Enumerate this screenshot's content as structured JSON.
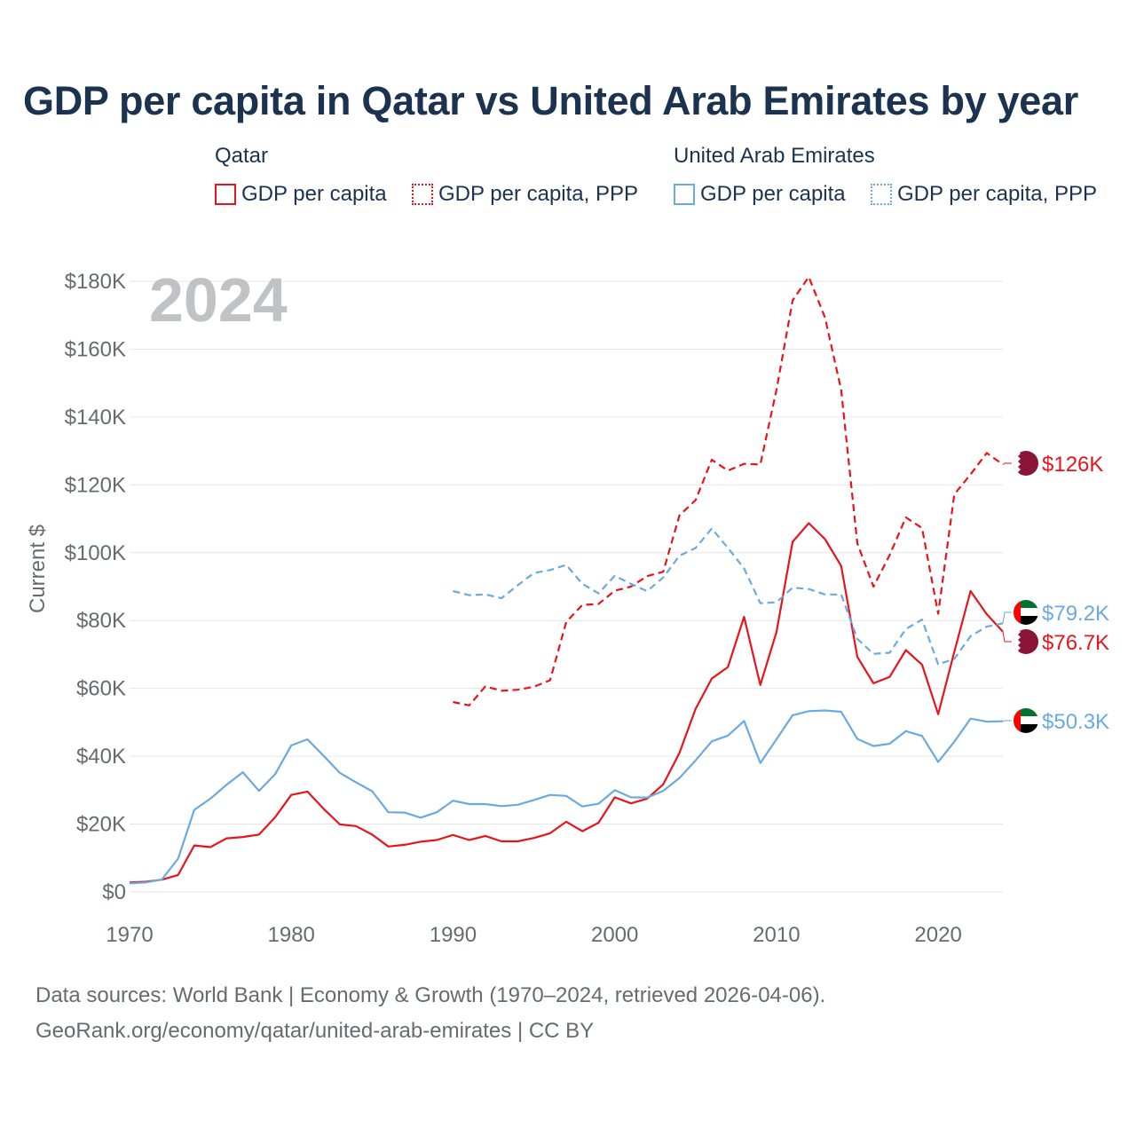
{
  "header": {
    "title": "GDP per capita in Qatar vs United Arab Emirates by year"
  },
  "legend": {
    "groups": [
      {
        "title": "Qatar",
        "items": [
          "GDP per capita",
          "GDP per capita, PPP"
        ]
      },
      {
        "title": "United Arab Emirates",
        "items": [
          "GDP per capita",
          "GDP per capita, PPP"
        ]
      }
    ]
  },
  "footer": {
    "line1": "Data sources: World Bank | Economy & Growth (1970–2024, retrieved 2026-04-06).",
    "line2": "GeoRank.org/economy/qatar/united-arab-emirates | CC BY"
  },
  "colors": {
    "qatar": "#e8141b",
    "uae": "#6aaae0",
    "grid": "#e6e6e6",
    "axis_text": "#666b70",
    "year_label": "#c0c2c6"
  },
  "chart_data": {
    "type": "line",
    "year_label": "2024",
    "ylabel": "Current $",
    "xlim": [
      1970,
      2024
    ],
    "ylim": [
      0,
      180000
    ],
    "x_ticks": [
      1970,
      1980,
      1990,
      2000,
      2010,
      2020
    ],
    "y_ticks": [
      {
        "value": 0,
        "label": "$0"
      },
      {
        "value": 20000,
        "label": "$20K"
      },
      {
        "value": 40000,
        "label": "$40K"
      },
      {
        "value": 60000,
        "label": "$60K"
      },
      {
        "value": 80000,
        "label": "$80K"
      },
      {
        "value": 100000,
        "label": "$100K"
      },
      {
        "value": 120000,
        "label": "$120K"
      },
      {
        "value": 140000,
        "label": "$140K"
      },
      {
        "value": 160000,
        "label": "$160K"
      },
      {
        "value": 180000,
        "label": "$180K"
      }
    ],
    "series": [
      {
        "name": "Qatar GDP per capita",
        "country": "qatar",
        "dash": false,
        "end_label": "$76.7K",
        "end_value": 76700,
        "x": [
          1970,
          1971,
          1972,
          1973,
          1974,
          1975,
          1976,
          1977,
          1978,
          1979,
          1980,
          1981,
          1982,
          1983,
          1984,
          1985,
          1986,
          1987,
          1988,
          1989,
          1990,
          1991,
          1992,
          1993,
          1994,
          1995,
          1996,
          1997,
          1998,
          1999,
          2000,
          2001,
          2002,
          2003,
          2004,
          2005,
          2006,
          2007,
          2008,
          2009,
          2010,
          2011,
          2012,
          2013,
          2014,
          2015,
          2016,
          2017,
          2018,
          2019,
          2020,
          2021,
          2022,
          2023,
          2024
        ],
        "values": [
          2800,
          3000,
          3600,
          5000,
          13700,
          13200,
          15800,
          16200,
          16900,
          22000,
          28600,
          29600,
          24500,
          19900,
          19400,
          16900,
          13400,
          13900,
          14800,
          15300,
          16800,
          15300,
          16500,
          14900,
          14900,
          15900,
          17300,
          20700,
          17900,
          20400,
          27900,
          26100,
          27500,
          31700,
          41000,
          54000,
          62900,
          66300,
          81100,
          61000,
          76600,
          103200,
          108700,
          104000,
          96100,
          69300,
          61500,
          63400,
          71300,
          67000,
          52400,
          70800,
          88700,
          81900,
          76700
        ]
      },
      {
        "name": "Qatar GDP per capita, PPP",
        "country": "qatar",
        "dash": true,
        "end_label": "$126K",
        "end_value": 126000,
        "x": [
          1990,
          1991,
          1992,
          1993,
          1994,
          1995,
          1996,
          1997,
          1998,
          1999,
          2000,
          2001,
          2002,
          2003,
          2004,
          2005,
          2006,
          2007,
          2008,
          2009,
          2010,
          2011,
          2012,
          2013,
          2014,
          2015,
          2016,
          2017,
          2018,
          2019,
          2020,
          2021,
          2022,
          2023,
          2024
        ],
        "values": [
          56000,
          55000,
          60600,
          59300,
          59600,
          60500,
          62400,
          79600,
          84600,
          84900,
          88800,
          90000,
          93100,
          94400,
          111000,
          115500,
          127400,
          124200,
          126200,
          126000,
          148000,
          174400,
          181300,
          169300,
          148000,
          102800,
          90000,
          99300,
          110400,
          107300,
          82000,
          117200,
          123100,
          129400,
          126000
        ]
      },
      {
        "name": "United Arab Emirates GDP per capita",
        "country": "uae",
        "dash": false,
        "end_label": "$50.3K",
        "end_value": 50300,
        "x": [
          1970,
          1971,
          1972,
          1973,
          1974,
          1975,
          1976,
          1977,
          1978,
          1979,
          1980,
          1981,
          1982,
          1983,
          1984,
          1985,
          1986,
          1987,
          1988,
          1989,
          1990,
          1991,
          1992,
          1993,
          1994,
          1995,
          1996,
          1997,
          1998,
          1999,
          2000,
          2001,
          2002,
          2003,
          2004,
          2005,
          2006,
          2007,
          2008,
          2009,
          2010,
          2011,
          2012,
          2013,
          2014,
          2015,
          2016,
          2017,
          2018,
          2019,
          2020,
          2021,
          2022,
          2023,
          2024
        ],
        "values": [
          2500,
          2800,
          3700,
          9800,
          24200,
          27500,
          31600,
          35300,
          29800,
          34700,
          43200,
          45000,
          40100,
          35100,
          32300,
          29700,
          23500,
          23400,
          21900,
          23500,
          26900,
          25900,
          25900,
          25300,
          25700,
          27100,
          28600,
          28300,
          25200,
          26000,
          30000,
          27900,
          27800,
          29800,
          33600,
          38800,
          44400,
          46100,
          50400,
          38000,
          45000,
          52100,
          53300,
          53500,
          53100,
          45100,
          43000,
          43700,
          47400,
          46000,
          38300,
          44300,
          51100,
          50200,
          50300
        ]
      },
      {
        "name": "United Arab Emirates GDP per capita, PPP",
        "country": "uae",
        "dash": true,
        "end_label": "$79.2K",
        "end_value": 79200,
        "x": [
          1990,
          1991,
          1992,
          1993,
          1994,
          1995,
          1996,
          1997,
          1998,
          1999,
          2000,
          2001,
          2002,
          2003,
          2004,
          2005,
          2006,
          2007,
          2008,
          2009,
          2010,
          2011,
          2012,
          2013,
          2014,
          2015,
          2016,
          2017,
          2018,
          2019,
          2020,
          2021,
          2022,
          2023,
          2024
        ],
        "values": [
          88700,
          87500,
          87700,
          86600,
          90400,
          94000,
          94900,
          96400,
          90800,
          88000,
          93200,
          90800,
          88700,
          92700,
          99100,
          101400,
          107100,
          101400,
          95400,
          85100,
          85400,
          89700,
          89300,
          87700,
          87700,
          74600,
          70200,
          70500,
          77500,
          80300,
          67100,
          68700,
          75400,
          78200,
          79200
        ]
      }
    ]
  }
}
